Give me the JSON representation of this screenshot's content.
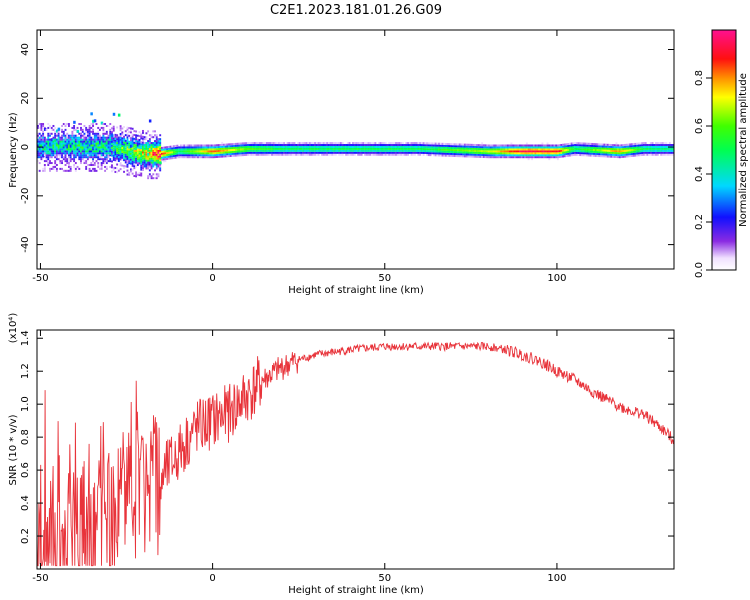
{
  "figure_title": "C2E1.2023.181.01.26.G09",
  "chart_data": [
    {
      "type": "heatmap",
      "xlabel": "Height of straight line (km)",
      "ylabel": "Frequency (Hz)",
      "xlim": [
        -51,
        134
      ],
      "ylim": [
        -50,
        48
      ],
      "xticks": [
        -50,
        0,
        50,
        100
      ],
      "yticks": [
        -40,
        -20,
        0,
        20,
        40
      ],
      "grid": false,
      "colorbar": {
        "label": "Normalized spectral amplitude",
        "range": [
          0,
          1
        ],
        "ticks": [
          "0.0",
          "0.2",
          "0.4",
          "0.6",
          "0.8"
        ],
        "colormap": "rainbow (white-violet-blue-cyan-green-yellow-orange-red-magenta)"
      },
      "ridge": [
        {
          "x": -50,
          "y": 0,
          "amp": 0.4
        },
        {
          "x": -40,
          "y": 0,
          "amp": 0.45
        },
        {
          "x": -30,
          "y": 0,
          "amp": 0.45
        },
        {
          "x": -20,
          "y": -3,
          "amp": 0.7
        },
        {
          "x": -15,
          "y": -3,
          "amp": 0.9
        },
        {
          "x": -10,
          "y": -2,
          "amp": 0.5
        },
        {
          "x": 0,
          "y": -2,
          "amp": 0.85
        },
        {
          "x": 10,
          "y": -1,
          "amp": 0.6
        },
        {
          "x": 20,
          "y": -1,
          "amp": 0.5
        },
        {
          "x": 40,
          "y": -1,
          "amp": 0.5
        },
        {
          "x": 60,
          "y": -1,
          "amp": 0.5
        },
        {
          "x": 80,
          "y": -2,
          "amp": 0.7
        },
        {
          "x": 90,
          "y": -2,
          "amp": 0.95
        },
        {
          "x": 100,
          "y": -2,
          "amp": 0.9
        },
        {
          "x": 105,
          "y": -1,
          "amp": 0.5
        },
        {
          "x": 118,
          "y": -2,
          "amp": 0.8
        },
        {
          "x": 125,
          "y": -1,
          "amp": 0.5
        },
        {
          "x": 134,
          "y": -1,
          "amp": 0.45
        }
      ]
    },
    {
      "type": "line",
      "xlabel": "Height of straight line (km)",
      "ylabel": "SNR (10 * v/v)",
      "y_multiplier": "(x10⁴)",
      "xlim": [
        -51,
        134
      ],
      "ylim": [
        0.0,
        1.45
      ],
      "xticks": [
        -50,
        0,
        50,
        100
      ],
      "yticks": [
        "0.2",
        "0.4",
        "0.6",
        "0.8",
        "1.0",
        "1.2",
        "1.4"
      ],
      "color": "#e8333a",
      "series": [
        {
          "x": [
            -51,
            -45,
            -40,
            -35,
            -30,
            -25,
            -20,
            -15,
            -10,
            -5,
            0,
            5,
            10,
            15,
            20,
            25,
            30,
            40,
            50,
            60,
            70,
            80,
            85,
            90,
            95,
            100,
            105,
            110,
            115,
            120,
            125,
            130,
            134
          ],
          "values": [
            0.15,
            0.18,
            0.2,
            0.3,
            0.4,
            0.45,
            0.5,
            0.55,
            0.7,
            0.85,
            0.9,
            0.95,
            1.05,
            1.15,
            1.22,
            1.27,
            1.3,
            1.33,
            1.35,
            1.35,
            1.35,
            1.35,
            1.33,
            1.3,
            1.26,
            1.2,
            1.15,
            1.08,
            1.02,
            0.97,
            0.94,
            0.86,
            0.78
          ]
        }
      ]
    }
  ]
}
